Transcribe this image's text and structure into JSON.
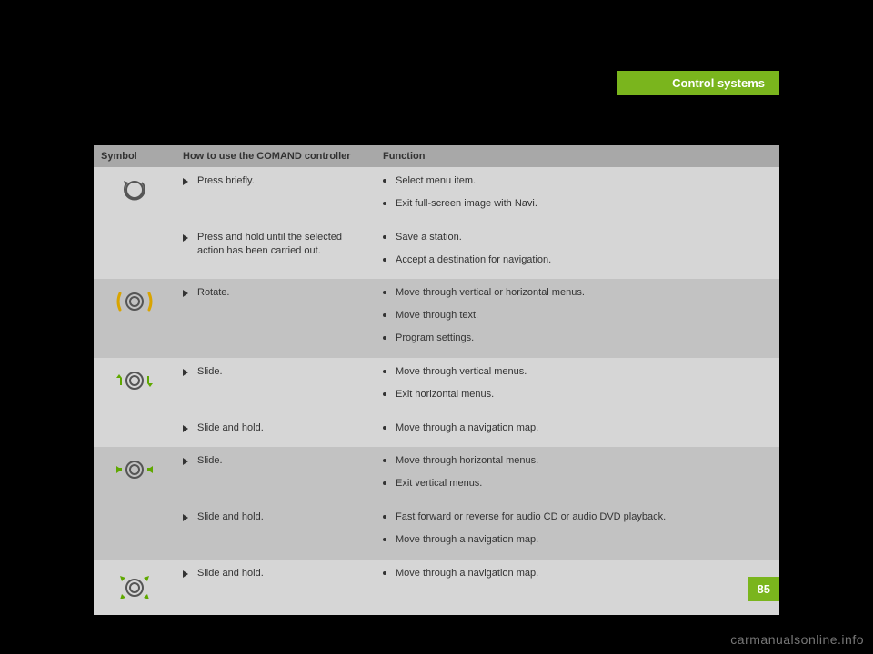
{
  "header": {
    "title": "Control systems"
  },
  "page_number": "85",
  "watermark": "carmanualsonline.info",
  "table": {
    "columns": [
      "Symbol",
      "How to use the COMAND controller",
      "Function"
    ],
    "groups": [
      {
        "shade": "light",
        "symbol": "press",
        "rows": [
          {
            "action": "Press briefly.",
            "functions": [
              "Select menu item.",
              "Exit full-screen image with Navi."
            ]
          },
          {
            "action": "Press and hold until the selected action has been carried out.",
            "functions": [
              "Save a station.",
              "Accept a destination for navigation."
            ]
          }
        ]
      },
      {
        "shade": "dark",
        "symbol": "rotate",
        "rows": [
          {
            "action": "Rotate.",
            "functions": [
              "Move through vertical or horizontal menus.",
              "Move through text.",
              "Program settings."
            ]
          }
        ]
      },
      {
        "shade": "light",
        "symbol": "slide-v",
        "rows": [
          {
            "action": "Slide.",
            "functions": [
              "Move through vertical menus.",
              "Exit horizontal menus."
            ]
          },
          {
            "action": "Slide and hold.",
            "functions": [
              "Move through a navigation map."
            ]
          }
        ]
      },
      {
        "shade": "dark",
        "symbol": "slide-h",
        "rows": [
          {
            "action": "Slide.",
            "functions": [
              "Move through horizontal menus.",
              "Exit vertical menus."
            ]
          },
          {
            "action": "Slide and hold.",
            "functions": [
              "Fast forward or reverse for audio CD or audio DVD playback.",
              "Move through a navigation map."
            ]
          }
        ]
      },
      {
        "shade": "light",
        "symbol": "slide-diag",
        "rows": [
          {
            "action": "Slide and hold.",
            "functions": [
              "Move through a navigation map."
            ]
          }
        ]
      }
    ]
  },
  "colors": {
    "accent": "#7ab51d",
    "arrow_yellow": "#d9a400",
    "arrow_green": "#5fa800",
    "icon_stroke": "#555555"
  }
}
